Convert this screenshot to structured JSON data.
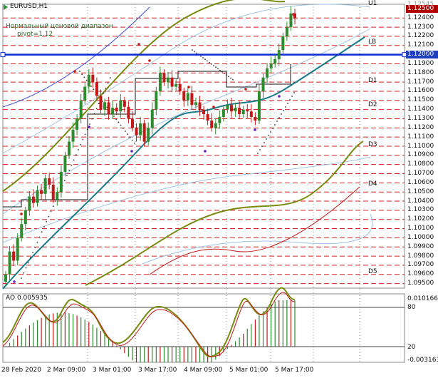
{
  "symbol": "EURUSD,H1",
  "indicator_text": {
    "line1": "Нормальный ценовой диапазон",
    "line2": "pivot=1.12"
  },
  "level_labels": [
    "U1",
    "LB",
    "D1",
    "D2",
    "D3",
    "D4",
    "D5"
  ],
  "price_axis": {
    "top_label": "1.12545",
    "ticks": [
      "1.12400",
      "1.12300",
      "1.12200",
      "1.12100",
      "1.12000",
      "1.11900",
      "1.11800",
      "1.11700",
      "1.11600",
      "1.11500",
      "1.11400",
      "1.11300",
      "1.11200",
      "1.11100",
      "1.11000",
      "1.10900",
      "1.10800",
      "1.10700",
      "1.10600",
      "1.10500",
      "1.10400",
      "1.10300",
      "1.10200",
      "1.10100",
      "1.10000",
      "1.09900",
      "1.09800",
      "1.09700",
      "1.09600",
      "1.09500"
    ],
    "current_price": "1.12500",
    "highlight_price": "1.12000"
  },
  "ao": {
    "label": "AO 0.005935",
    "ticks": [
      "0.010166",
      "80",
      "20",
      "-0.003163"
    ]
  },
  "time_axis": [
    "28 Feb 2020",
    "2 Mar 09:00",
    "3 Mar 01:00",
    "3 Mar 17:00",
    "4 Mar 09:00",
    "5 Mar 01:00",
    "5 Mar 17:00"
  ],
  "colors": {
    "grid_red": "#d42020",
    "bull_candle": "#2e8b2e",
    "bear_candle": "#c21818",
    "olive_band": "#7a8a10",
    "teal_ma": "#1a7a8a",
    "pivot_line": "#0a2bd6",
    "ao_line": "#7a8a10",
    "ao_signal": "#c21818",
    "current_price_bg": "#b00000"
  },
  "chart_data": {
    "type": "candlestick",
    "title": "EURUSD,H1",
    "ylim": [
      1.0945,
      1.1255
    ],
    "pivot": 1.12,
    "closes": [
      1.096,
      1.0985,
      1.0975,
      1.1,
      1.1015,
      1.103,
      1.1045,
      1.1038,
      1.1052,
      1.1048,
      1.1065,
      1.1058,
      1.1042,
      1.105,
      1.1072,
      1.109,
      1.1105,
      1.1118,
      1.113,
      1.115,
      1.1165,
      1.1178,
      1.117,
      1.1155,
      1.114,
      1.1148,
      1.1135,
      1.1142,
      1.1138,
      1.115,
      1.1143,
      1.113,
      1.112,
      1.1112,
      1.1125,
      1.1105,
      1.112,
      1.114,
      1.116,
      1.118,
      1.117,
      1.1175,
      1.1165,
      1.1168,
      1.116,
      1.115,
      1.1158,
      1.1145,
      1.1148,
      1.114,
      1.1135,
      1.1128,
      1.112,
      1.1125,
      1.1132,
      1.114,
      1.1145,
      1.1138,
      1.1142,
      1.1135,
      1.114,
      1.1138,
      1.1132,
      1.1128,
      1.116,
      1.1175,
      1.1185,
      1.119,
      1.1195,
      1.1205,
      1.122,
      1.123,
      1.1245,
      1.124
    ]
  }
}
